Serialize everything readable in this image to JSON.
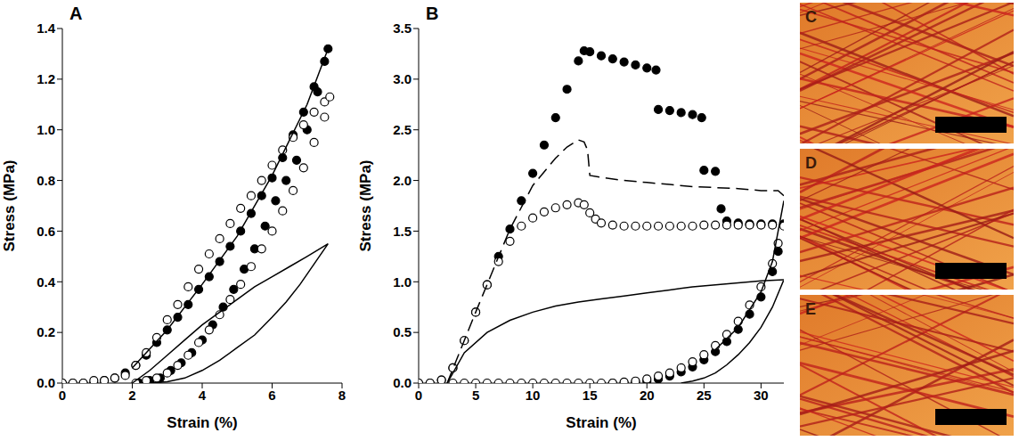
{
  "chart_data": [
    {
      "type": "scatter",
      "title": "A",
      "x_label": "Strain (%)",
      "y_label": "Stress (MPa)",
      "xlim": [
        0,
        8
      ],
      "xticks": [
        0,
        2,
        4,
        6,
        8
      ],
      "ylim": [
        0,
        1.4
      ],
      "yticks": [
        {
          "value": 0,
          "label": "0.0"
        },
        0.2,
        0.4,
        0.6,
        0.8,
        {
          "value": 1,
          "label": "1.0"
        },
        1.2,
        1.4
      ],
      "series": [
        {
          "color": "#000000",
          "marker": "filled",
          "line_style": "none",
          "x": [
            0,
            0.3,
            0.6,
            0.9,
            1.2,
            1.5,
            1.8,
            2.1,
            2.4,
            2.7,
            3.0,
            3.3,
            3.6,
            3.9,
            4.2,
            4.5,
            4.8,
            5.1,
            5.4,
            5.7,
            6.0,
            6.3,
            6.6,
            6.9,
            7.2,
            7.5,
            7.6,
            7.3,
            7.0,
            6.7,
            6.4,
            6.1,
            5.8,
            5.5,
            5.2,
            4.9,
            4.6,
            4.3,
            4.0,
            3.7,
            3.4,
            3.1,
            2.8,
            2.5,
            2.2
          ],
          "values": [
            0,
            0,
            0,
            0,
            0.01,
            0.02,
            0.04,
            0.07,
            0.11,
            0.16,
            0.21,
            0.26,
            0.31,
            0.37,
            0.42,
            0.48,
            0.54,
            0.6,
            0.67,
            0.74,
            0.81,
            0.89,
            0.98,
            1.07,
            1.17,
            1.27,
            1.32,
            1.15,
            1.0,
            0.88,
            0.8,
            0.72,
            0.62,
            0.53,
            0.45,
            0.37,
            0.3,
            0.23,
            0.17,
            0.12,
            0.08,
            0.05,
            0.02,
            0.01,
            0
          ]
        },
        {
          "color": "#000000",
          "marker": "open",
          "line_style": "none",
          "x": [
            0,
            0.3,
            0.6,
            0.9,
            1.2,
            1.5,
            1.8,
            2.1,
            2.4,
            2.7,
            3.0,
            3.3,
            3.6,
            3.9,
            4.2,
            4.5,
            4.8,
            5.1,
            5.4,
            5.7,
            6.0,
            6.3,
            6.6,
            6.9,
            7.2,
            7.5,
            7.65,
            7.5,
            7.2,
            6.9,
            6.6,
            6.3,
            6.0,
            5.7,
            5.4,
            5.1,
            4.8,
            4.5,
            4.2,
            3.9,
            3.6,
            3.3,
            3.0,
            2.7,
            2.4,
            2.1
          ],
          "values": [
            0,
            0,
            0,
            0.01,
            0.01,
            0.02,
            0.03,
            0.07,
            0.12,
            0.18,
            0.25,
            0.31,
            0.38,
            0.45,
            0.51,
            0.57,
            0.63,
            0.69,
            0.74,
            0.8,
            0.86,
            0.92,
            0.97,
            1.02,
            1.07,
            1.11,
            1.13,
            1.05,
            0.95,
            0.85,
            0.76,
            0.68,
            0.6,
            0.53,
            0.46,
            0.39,
            0.33,
            0.27,
            0.21,
            0.16,
            0.11,
            0.07,
            0.04,
            0.02,
            0.01,
            0
          ]
        },
        {
          "color": "#000000",
          "marker": "none",
          "line_style": "solid",
          "x": [
            2,
            3,
            4,
            5,
            6,
            7,
            7.6
          ],
          "values": [
            0.06,
            0.21,
            0.39,
            0.58,
            0.82,
            1.1,
            1.32
          ]
        },
        {
          "color": "#000000",
          "marker": "none",
          "line_style": "solid",
          "x": [
            2.0,
            2.5,
            3,
            3.5,
            4,
            4.5,
            5,
            5.5,
            6,
            6.5,
            7,
            7.6,
            7.2,
            6.8,
            6.4,
            6.0,
            5.5,
            5.0,
            4.5,
            4.0,
            3.5,
            3.0,
            2.5
          ],
          "values": [
            0,
            0.05,
            0.11,
            0.17,
            0.23,
            0.28,
            0.33,
            0.38,
            0.42,
            0.46,
            0.5,
            0.55,
            0.47,
            0.39,
            0.32,
            0.26,
            0.19,
            0.14,
            0.09,
            0.05,
            0.02,
            0.005,
            0
          ]
        }
      ]
    },
    {
      "type": "scatter",
      "title": "B",
      "x_label": "Strain (%)",
      "y_label": "Stress (MPa)",
      "xlim": [
        0,
        32
      ],
      "xticks": [
        0,
        5,
        10,
        15,
        20,
        25,
        30
      ],
      "ylim": [
        0,
        3.5
      ],
      "yticks": [
        {
          "value": 0,
          "label": "0.0"
        },
        0.5,
        {
          "value": 1,
          "label": "1.0"
        },
        1.5,
        {
          "value": 2,
          "label": "2.0"
        },
        2.5,
        {
          "value": 3,
          "label": "3.0"
        },
        3.5
      ],
      "series": [
        {
          "color": "#000000",
          "marker": "filled",
          "line_style": "none",
          "x": [
            0,
            1,
            2,
            3,
            4,
            5,
            6,
            7,
            8,
            9,
            10,
            11,
            12,
            13,
            14,
            14.5,
            15,
            16,
            17,
            18,
            19,
            20,
            20.8,
            21,
            22,
            23,
            24,
            24.8,
            25,
            26,
            26.5,
            27,
            28,
            29,
            30,
            31,
            32,
            31.5,
            31,
            30,
            29,
            28,
            27,
            26,
            25,
            24,
            23,
            22,
            21,
            20,
            19,
            18,
            17
          ],
          "values": [
            0,
            0,
            0.03,
            0.15,
            0.42,
            0.7,
            0.97,
            1.25,
            1.52,
            1.8,
            2.07,
            2.35,
            2.62,
            2.9,
            3.18,
            3.28,
            3.27,
            3.23,
            3.2,
            3.17,
            3.14,
            3.11,
            3.09,
            2.7,
            2.69,
            2.67,
            2.65,
            2.62,
            2.1,
            2.09,
            1.72,
            1.6,
            1.58,
            1.57,
            1.57,
            1.57,
            1.57,
            1.3,
            1.1,
            0.85,
            0.68,
            0.53,
            0.41,
            0.31,
            0.23,
            0.16,
            0.11,
            0.07,
            0.04,
            0.02,
            0.01,
            0,
            0
          ]
        },
        {
          "color": "#000000",
          "marker": "open",
          "line_style": "none",
          "x": [
            0,
            1,
            2,
            3,
            4,
            5,
            6,
            7,
            8,
            9,
            10,
            11,
            12,
            13,
            14,
            14.5,
            15,
            15.5,
            16,
            17,
            18,
            19,
            20,
            21,
            22,
            23,
            24,
            25,
            26,
            27,
            28,
            29,
            30,
            31,
            32,
            31.5,
            31,
            30,
            29,
            28,
            27,
            26,
            25,
            24,
            23,
            22,
            21,
            20,
            19,
            18,
            17,
            16,
            15,
            14,
            13,
            12,
            11,
            10,
            9,
            8,
            7,
            6,
            5,
            4,
            3
          ],
          "values": [
            0,
            0,
            0.03,
            0.15,
            0.42,
            0.7,
            0.97,
            1.2,
            1.4,
            1.55,
            1.63,
            1.69,
            1.73,
            1.76,
            1.78,
            1.76,
            1.68,
            1.62,
            1.58,
            1.56,
            1.55,
            1.55,
            1.55,
            1.55,
            1.55,
            1.55,
            1.55,
            1.56,
            1.56,
            1.56,
            1.56,
            1.56,
            1.56,
            1.56,
            1.55,
            1.38,
            1.18,
            0.95,
            0.77,
            0.61,
            0.48,
            0.37,
            0.28,
            0.21,
            0.15,
            0.1,
            0.07,
            0.04,
            0.02,
            0.01,
            0,
            0,
            0,
            0,
            0,
            0,
            0,
            0,
            0,
            0,
            0,
            0,
            0,
            0,
            0
          ]
        },
        {
          "color": "#000000",
          "marker": "none",
          "line_style": "dashed",
          "x": [
            2.5,
            5,
            8,
            10,
            12,
            13,
            14,
            14.5,
            14.8,
            15,
            16,
            18,
            20,
            22,
            24,
            26,
            28,
            30,
            31.5,
            32
          ],
          "values": [
            0,
            0.7,
            1.52,
            1.95,
            2.22,
            2.33,
            2.4,
            2.38,
            2.3,
            2.05,
            2.03,
            2.0,
            1.98,
            1.96,
            1.94,
            1.93,
            1.92,
            1.9,
            1.9,
            1.85
          ]
        },
        {
          "color": "#000000",
          "marker": "none",
          "line_style": "solid",
          "x": [
            2.5,
            4,
            6,
            8,
            10,
            12,
            14,
            16,
            18,
            20,
            22,
            24,
            26,
            28,
            30,
            32,
            31,
            30,
            29,
            28,
            27,
            26,
            25,
            24,
            23
          ],
          "values": [
            0,
            0.3,
            0.5,
            0.62,
            0.7,
            0.76,
            0.8,
            0.83,
            0.86,
            0.89,
            0.92,
            0.95,
            0.97,
            0.99,
            1.01,
            1.02,
            0.75,
            0.55,
            0.4,
            0.28,
            0.18,
            0.1,
            0.05,
            0.02,
            0
          ]
        },
        {
          "color": "#000000",
          "marker": "none",
          "line_style": "solid",
          "x": [
            26,
            28,
            30,
            31,
            32
          ],
          "values": [
            0.33,
            0.55,
            0.9,
            1.2,
            1.8
          ]
        }
      ]
    }
  ],
  "images": [
    {
      "label": "C"
    },
    {
      "label": "D"
    },
    {
      "label": "E"
    }
  ]
}
